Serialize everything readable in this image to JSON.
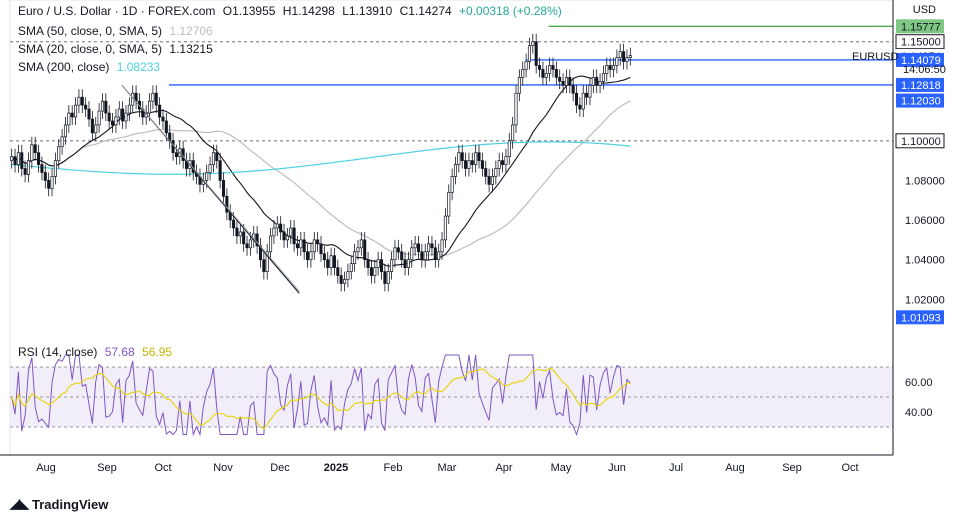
{
  "header": {
    "title": "Euro / U.S. Dollar · 1D · FOREX.com",
    "ohlc": {
      "o_label": "O",
      "o": "1.13955",
      "h_label": "H",
      "h": "1.14298",
      "l_label": "L",
      "l": "1.13910",
      "c_label": "C",
      "c": "1.14274",
      "change": "+0.00318 (+0.28%)"
    },
    "indicators": [
      {
        "label": "SMA (50, close, 0, SMA, 5)",
        "value": "1.12706",
        "color": "#bdbdbd"
      },
      {
        "label": "SMA (20, close, 0, SMA, 5)",
        "value": "1.13215",
        "color": "#131722"
      },
      {
        "label": "SMA (200, close)",
        "value": "1.08233",
        "color": "#4dd0e1"
      }
    ]
  },
  "currency": "USD",
  "symbol_tag": "EURUSD",
  "countdown": "14:06:50",
  "rsi": {
    "label": "RSI (14, close)",
    "value": "57.68",
    "ma_value": "56.95",
    "ticks": [
      "60.00",
      "40.00"
    ]
  },
  "brand": "TradingView",
  "chart_data": {
    "type": "candlestick",
    "x_ticks": [
      "Aug",
      "Sep",
      "Oct",
      "Nov",
      "Dec",
      "2025",
      "Feb",
      "Mar",
      "Apr",
      "May",
      "Jun",
      "Jul",
      "Aug",
      "Sep",
      "Oct"
    ],
    "y_ticks": [
      "1.08000",
      "1.06000",
      "1.04000",
      "1.02000"
    ],
    "ylim": [
      1.002,
      1.166
    ],
    "price_tags": [
      {
        "text": "1.15777",
        "value": 1.15777,
        "bg": "#81c784",
        "fg": "#131722"
      },
      {
        "text": "1.15000",
        "value": 1.15,
        "bg": "#ffffff",
        "fg": "#131722",
        "border": "#131722"
      },
      {
        "text": "1.14274",
        "value": 1.14274,
        "bg": "#ffffff",
        "fg": "#131722"
      },
      {
        "text": "1.14079",
        "value": 1.14079,
        "bg": "#2962ff",
        "fg": "#ffffff"
      },
      {
        "text": "1.12818",
        "value": 1.12818,
        "bg": "#2962ff",
        "fg": "#ffffff"
      },
      {
        "text": "1.12030",
        "value": 1.1203,
        "bg": "#2962ff",
        "fg": "#ffffff"
      },
      {
        "text": "1.10000",
        "value": 1.1,
        "bg": "#ffffff",
        "fg": "#131722",
        "border": "#131722"
      },
      {
        "text": "1.01093",
        "value": 1.01093,
        "bg": "#2962ff",
        "fg": "#ffffff"
      }
    ],
    "h_lines": [
      {
        "value": 1.15777,
        "color": "#4caf50",
        "style": "solid",
        "x0_frac": 0.61
      },
      {
        "value": 1.15,
        "color": "#9598a1",
        "style": "dashed",
        "x0_frac": 0.0
      },
      {
        "value": 1.14079,
        "color": "#2962ff",
        "style": "solid",
        "x0_frac": 0.585
      },
      {
        "value": 1.12818,
        "color": "#2962ff",
        "style": "solid",
        "x0_frac": 0.18
      },
      {
        "value": 1.1,
        "color": "#9598a1",
        "style": "dashed",
        "x0_frac": 0.0
      }
    ],
    "trendlines": [
      {
        "x0": 0.18,
        "y0": 1.128,
        "x1": 0.465,
        "y1": 1.023,
        "color": "#131722"
      },
      {
        "x0": 0.18,
        "y0": 1.128,
        "x1": 0.465,
        "y1": 1.024,
        "color": "#9598a1"
      }
    ],
    "closes": [
      1.092,
      1.088,
      1.094,
      1.086,
      1.083,
      1.09,
      1.098,
      1.094,
      1.088,
      1.084,
      1.08,
      1.076,
      1.082,
      1.09,
      1.097,
      1.102,
      1.108,
      1.114,
      1.112,
      1.118,
      1.122,
      1.118,
      1.116,
      1.111,
      1.104,
      1.108,
      1.115,
      1.12,
      1.114,
      1.11,
      1.108,
      1.112,
      1.116,
      1.11,
      1.114,
      1.118,
      1.124,
      1.12,
      1.116,
      1.112,
      1.114,
      1.12,
      1.124,
      1.118,
      1.112,
      1.11,
      1.104,
      1.1,
      1.094,
      1.092,
      1.096,
      1.09,
      1.086,
      1.09,
      1.084,
      1.082,
      1.078,
      1.08,
      1.084,
      1.088,
      1.094,
      1.09,
      1.08,
      1.072,
      1.064,
      1.06,
      1.056,
      1.052,
      1.054,
      1.048,
      1.046,
      1.05,
      1.053,
      1.047,
      1.04,
      1.034,
      1.044,
      1.052,
      1.056,
      1.058,
      1.054,
      1.05,
      1.052,
      1.056,
      1.048,
      1.046,
      1.05,
      1.044,
      1.04,
      1.044,
      1.05,
      1.048,
      1.043,
      1.04,
      1.036,
      1.042,
      1.036,
      1.032,
      1.028,
      1.03,
      1.034,
      1.038,
      1.044,
      1.046,
      1.05,
      1.04,
      1.036,
      1.032,
      1.036,
      1.04,
      1.034,
      1.028,
      1.034,
      1.04,
      1.046,
      1.044,
      1.04,
      1.036,
      1.04,
      1.046,
      1.048,
      1.044,
      1.04,
      1.044,
      1.048,
      1.046,
      1.04,
      1.044,
      1.05,
      1.062,
      1.074,
      1.082,
      1.088,
      1.094,
      1.09,
      1.086,
      1.09,
      1.088,
      1.094,
      1.09,
      1.086,
      1.082,
      1.078,
      1.082,
      1.086,
      1.09,
      1.088,
      1.092,
      1.1,
      1.108,
      1.124,
      1.132,
      1.136,
      1.14,
      1.148,
      1.15,
      1.138,
      1.136,
      1.132,
      1.134,
      1.138,
      1.136,
      1.132,
      1.13,
      1.128,
      1.132,
      1.128,
      1.124,
      1.118,
      1.116,
      1.124,
      1.122,
      1.128,
      1.132,
      1.128,
      1.13,
      1.134,
      1.138,
      1.136,
      1.138,
      1.142,
      1.145,
      1.14,
      1.142,
      1.143
    ]
  }
}
